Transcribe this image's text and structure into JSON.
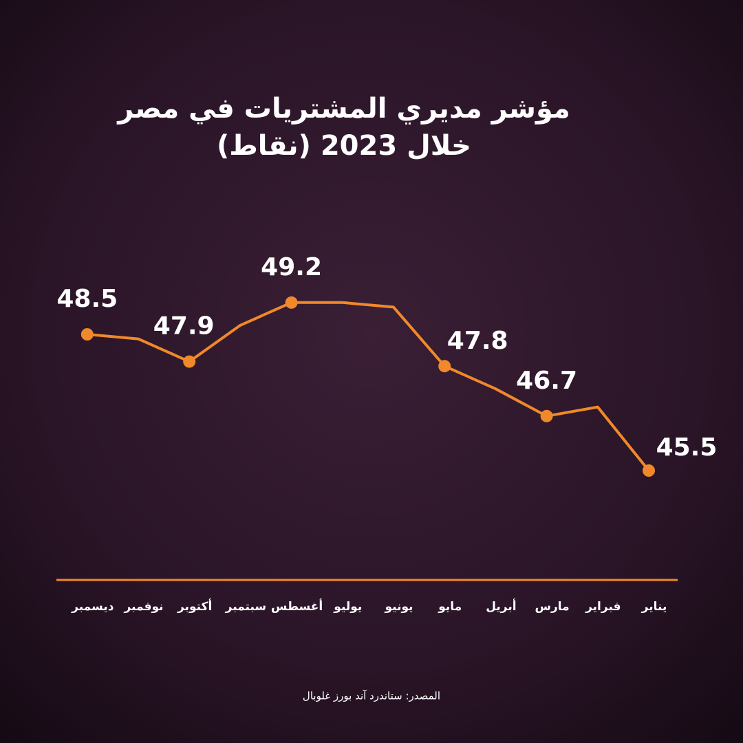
{
  "chart_data": {
    "type": "line",
    "title": "مؤشر مديري المشتريات في مصر",
    "subtitle": "خلال 2023 (نقاط)",
    "categories": [
      "يناير",
      "فبراير",
      "مارس",
      "أبريل",
      "مايو",
      "يونيو",
      "يوليو",
      "أغسطس",
      "سبتمبر",
      "أكتوبر",
      "نوفمبر",
      "ديسمبر"
    ],
    "values": [
      45.5,
      46.9,
      46.7,
      47.3,
      47.8,
      49.1,
      49.2,
      49.2,
      48.7,
      47.9,
      48.4,
      48.5
    ],
    "value_labels": [
      "45.5",
      null,
      "46.7",
      null,
      "47.8",
      null,
      null,
      "49.2",
      null,
      "47.9",
      null,
      "48.5"
    ],
    "color": "#f0892a",
    "ylim": [
      44,
      50
    ],
    "source": "المصدر: ستاندرد آند بورز غلوبال"
  }
}
